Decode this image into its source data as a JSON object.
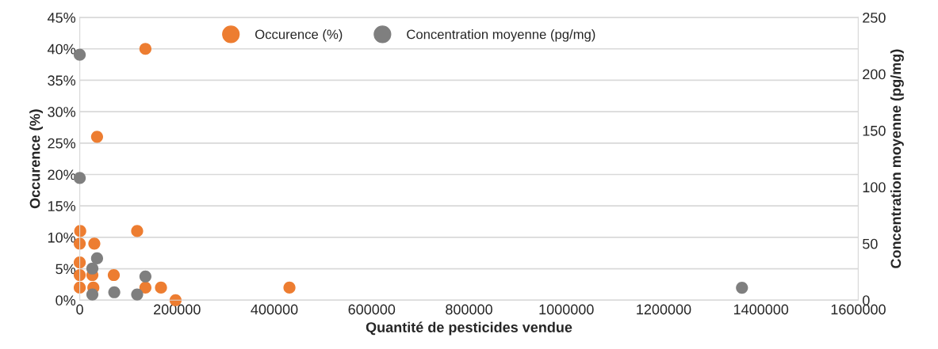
{
  "chart_data": {
    "type": "scatter",
    "xlabel": "Quantité de pesticides vendue",
    "ylabel": "Occurence (%)",
    "y2label": "Concentration moyenne (pg/mg)",
    "series": [
      {
        "name": "Occurence (%)",
        "color": "#ed7d31",
        "x": [
          135000,
          35600,
          1000,
          118000,
          0,
          30000,
          0,
          0,
          26000,
          70000,
          0,
          7000,
          15000,
          28000,
          135000,
          167000,
          431000,
          197000
        ],
        "values": [
          40,
          26,
          11,
          11,
          9,
          9,
          6,
          4,
          4,
          4,
          2,
          null,
          null,
          2,
          2,
          2,
          2,
          0
        ]
      },
      {
        "name": "Concentration moyenne (pg/mg)",
        "color": "#7f7f7f",
        "axis": "y2",
        "x": [
          0,
          0,
          35600,
          26000,
          135000,
          26000,
          71000,
          118000,
          1361000
        ],
        "values": [
          217,
          108,
          37,
          28,
          21,
          5,
          7,
          5,
          11
        ]
      }
    ],
    "xlim": [
      0,
      1600000
    ],
    "xticks": [
      0,
      200000,
      400000,
      600000,
      800000,
      1000000,
      1200000,
      1400000,
      1600000
    ],
    "ylim": [
      0,
      45
    ],
    "yticks": [
      {
        "value": 0,
        "label": "0%"
      },
      {
        "value": 5,
        "label": "5%"
      },
      {
        "value": 10,
        "label": "10%"
      },
      {
        "value": 15,
        "label": "15%"
      },
      {
        "value": 20,
        "label": "20%"
      },
      {
        "value": 25,
        "label": "25%"
      },
      {
        "value": 30,
        "label": "30%"
      },
      {
        "value": 35,
        "label": "35%"
      },
      {
        "value": 40,
        "label": "40%"
      },
      {
        "value": 45,
        "label": "45%"
      }
    ],
    "y2lim": [
      0,
      250
    ],
    "y2ticks": [
      0,
      50,
      100,
      150,
      200,
      250
    ],
    "grid": "y",
    "legend": "top",
    "marker": "circle"
  }
}
